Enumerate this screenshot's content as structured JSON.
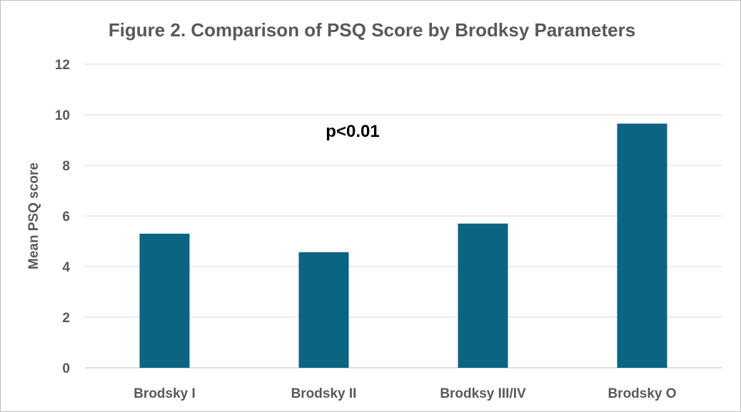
{
  "chart_data": {
    "type": "bar",
    "title": "Figure 2. Comparison of PSQ Score by  Brodksy  Parameters",
    "xlabel": "",
    "ylabel": "Mean PSQ score",
    "categories": [
      "Brodsky I",
      "Brodsky II",
      "Brodksy III/IV",
      "Brodsky O"
    ],
    "values": [
      5.3,
      4.57,
      5.7,
      9.65
    ],
    "ylim": [
      0,
      12
    ],
    "yticks": [
      0,
      2,
      4,
      6,
      8,
      10,
      12
    ],
    "grid": true,
    "legend": "none",
    "annotation": "p<0.01",
    "bar_color": "#0b6481"
  }
}
